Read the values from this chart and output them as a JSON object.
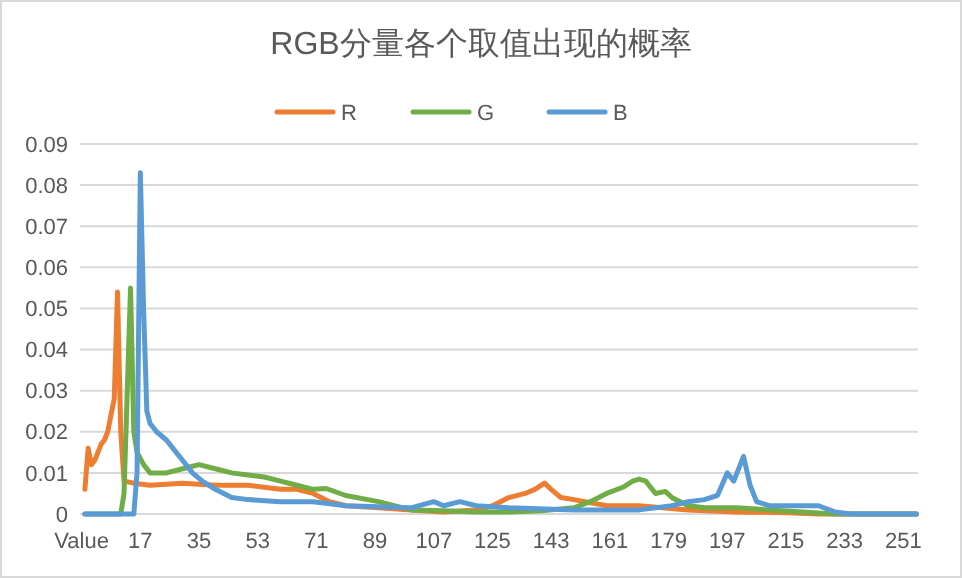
{
  "chart_data": {
    "type": "line",
    "title": "RGB分量各个取值出现的概率",
    "xlim": [
      -1.5,
      255.5
    ],
    "xticks": [
      {
        "value": -1,
        "label": "Value"
      },
      17,
      35,
      53,
      71,
      89,
      107,
      125,
      143,
      161,
      179,
      197,
      215,
      233,
      251
    ],
    "ylim": [
      0,
      0.09
    ],
    "yticks": [
      0,
      0.01,
      0.02,
      0.03,
      0.04,
      0.05,
      0.06,
      0.07,
      0.08,
      0.09
    ],
    "grid": "y",
    "legend": "top",
    "marker": "none",
    "line_style": "solid",
    "series": [
      {
        "name": "R",
        "color": "#ed7d31",
        "x": [
          0,
          1,
          2,
          3,
          4,
          5,
          6,
          7,
          8,
          9,
          10,
          11,
          12,
          15,
          20,
          30,
          40,
          50,
          60,
          65,
          70,
          75,
          80,
          90,
          100,
          110,
          120,
          125,
          130,
          135,
          138,
          141,
          143,
          146,
          150,
          160,
          170,
          185,
          200,
          215,
          225,
          240,
          255
        ],
        "values": [
          0.006,
          0.016,
          0.012,
          0.013,
          0.015,
          0.017,
          0.018,
          0.02,
          0.024,
          0.028,
          0.054,
          0.02,
          0.008,
          0.0075,
          0.007,
          0.0075,
          0.007,
          0.007,
          0.006,
          0.006,
          0.005,
          0.003,
          0.002,
          0.0015,
          0.001,
          0.0005,
          0.001,
          0.002,
          0.004,
          0.005,
          0.006,
          0.0075,
          0.006,
          0.004,
          0.0035,
          0.002,
          0.002,
          0.001,
          0.0005,
          0.0003,
          0,
          0,
          0
        ]
      },
      {
        "name": "G",
        "color": "#70ad47",
        "x": [
          0,
          11,
          12,
          13,
          14,
          15,
          16,
          18,
          20,
          25,
          30,
          35,
          40,
          45,
          50,
          55,
          60,
          65,
          70,
          74,
          80,
          90,
          100,
          110,
          120,
          130,
          140,
          150,
          155,
          160,
          165,
          168,
          170,
          172,
          175,
          178,
          180,
          185,
          190,
          200,
          210,
          220,
          230,
          255
        ],
        "values": [
          0,
          0,
          0.005,
          0.03,
          0.055,
          0.02,
          0.015,
          0.012,
          0.01,
          0.01,
          0.011,
          0.012,
          0.011,
          0.01,
          0.0095,
          0.009,
          0.008,
          0.007,
          0.006,
          0.0062,
          0.0045,
          0.003,
          0.001,
          0.0008,
          0.0005,
          0.0005,
          0.0008,
          0.0015,
          0.003,
          0.005,
          0.0065,
          0.008,
          0.0085,
          0.008,
          0.005,
          0.0055,
          0.004,
          0.002,
          0.0015,
          0.0015,
          0.001,
          0.0005,
          0,
          0
        ]
      },
      {
        "name": "B",
        "color": "#5b9bd5",
        "x": [
          0,
          15,
          16,
          17,
          18,
          19,
          20,
          22,
          25,
          28,
          30,
          33,
          36,
          40,
          45,
          50,
          60,
          70,
          80,
          100,
          107,
          110,
          115,
          120,
          130,
          150,
          170,
          180,
          185,
          190,
          194,
          197,
          199,
          202,
          204,
          206,
          210,
          220,
          225,
          230,
          235,
          255
        ],
        "values": [
          0,
          0,
          0.01,
          0.083,
          0.05,
          0.025,
          0.022,
          0.02,
          0.018,
          0.015,
          0.013,
          0.01,
          0.008,
          0.006,
          0.004,
          0.0035,
          0.003,
          0.003,
          0.002,
          0.0015,
          0.003,
          0.002,
          0.003,
          0.002,
          0.0015,
          0.001,
          0.001,
          0.002,
          0.003,
          0.0035,
          0.0045,
          0.01,
          0.008,
          0.014,
          0.007,
          0.003,
          0.002,
          0.002,
          0.002,
          0.0005,
          0,
          0
        ]
      }
    ]
  }
}
